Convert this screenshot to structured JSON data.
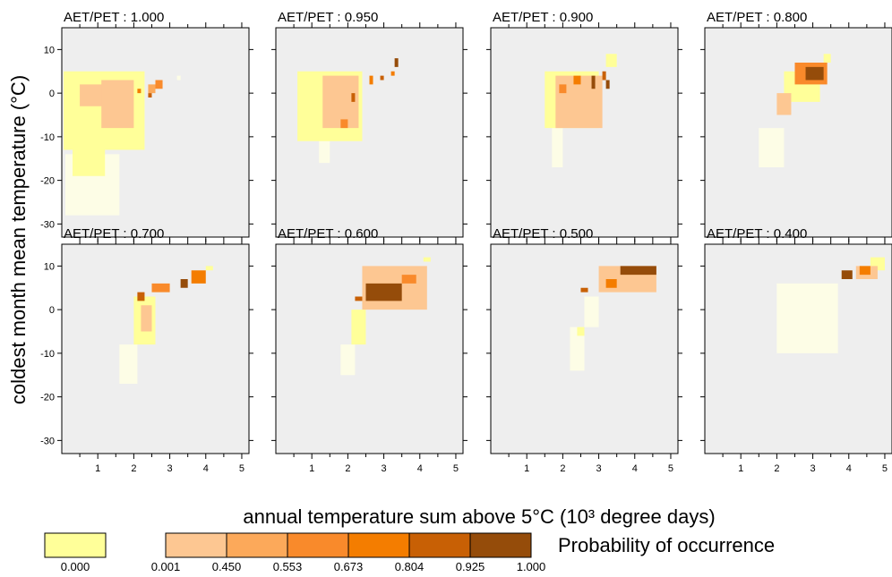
{
  "chart_data": {
    "type": "heatmap",
    "xlabel": "annual temperature sum above 5°C (10³ degree days)",
    "ylabel": "coldest month mean temperature (°C)",
    "xlim": [
      0,
      5.2
    ],
    "ylim": [
      -33,
      15
    ],
    "x_ticks": [
      1,
      2,
      3,
      4,
      5
    ],
    "y_ticks": [
      -30,
      -20,
      -10,
      0,
      10
    ],
    "legend": {
      "title": "Probability of occurrence",
      "zero_label": "0.000",
      "zero_color": "#ffff99",
      "bin_labels": [
        "0.001",
        "0.450",
        "0.553",
        "0.673",
        "0.804",
        "0.925",
        "1.000"
      ],
      "bin_colors": [
        "#fdc792",
        "#fca95a",
        "#f98a2b",
        "#f47d00",
        "#c86005",
        "#954c0a"
      ]
    },
    "absent_color": "#fdfde6",
    "background_color": "#eeeeee",
    "panels": [
      {
        "title": "AET/PET : 1.000",
        "aet_pet": 1.0,
        "regions": [
          {
            "class": "absent",
            "x": [
              0.1,
              1.6
            ],
            "y": [
              -28,
              -14
            ]
          },
          {
            "class": "zero",
            "x": [
              0.05,
              2.3
            ],
            "y": [
              -13,
              5
            ]
          },
          {
            "class": "zero",
            "x": [
              0.3,
              1.2
            ],
            "y": [
              -19,
              -13
            ]
          },
          {
            "class": "b1",
            "x": [
              0.5,
              1.7
            ],
            "y": [
              -3,
              2
            ]
          },
          {
            "class": "b1",
            "x": [
              1.1,
              2.0
            ],
            "y": [
              -8,
              3
            ]
          },
          {
            "class": "b2",
            "x": [
              2.4,
              2.6
            ],
            "y": [
              0,
              2
            ]
          },
          {
            "class": "b3",
            "x": [
              2.6,
              2.8
            ],
            "y": [
              1,
              3
            ]
          },
          {
            "class": "b4",
            "x": [
              2.1,
              2.2
            ],
            "y": [
              0,
              1
            ]
          },
          {
            "class": "b5",
            "x": [
              2.4,
              2.5
            ],
            "y": [
              -1,
              0
            ]
          },
          {
            "class": "absent",
            "x": [
              3.2,
              3.3
            ],
            "y": [
              3,
              4
            ]
          }
        ]
      },
      {
        "title": "AET/PET : 0.950",
        "aet_pet": 0.95,
        "regions": [
          {
            "class": "absent",
            "x": [
              1.2,
              1.5
            ],
            "y": [
              -16,
              -8
            ]
          },
          {
            "class": "zero",
            "x": [
              0.6,
              2.4
            ],
            "y": [
              -11,
              5
            ]
          },
          {
            "class": "b1",
            "x": [
              1.3,
              2.3
            ],
            "y": [
              -8,
              4
            ]
          },
          {
            "class": "b3",
            "x": [
              1.8,
              2.0
            ],
            "y": [
              -8,
              -6
            ]
          },
          {
            "class": "b4",
            "x": [
              2.6,
              2.7
            ],
            "y": [
              2,
              4
            ]
          },
          {
            "class": "b5",
            "x": [
              2.1,
              2.2
            ],
            "y": [
              -2,
              0
            ]
          },
          {
            "class": "b6",
            "x": [
              3.3,
              3.4
            ],
            "y": [
              6,
              8
            ]
          },
          {
            "class": "b5",
            "x": [
              2.9,
              3.0
            ],
            "y": [
              3,
              4
            ]
          },
          {
            "class": "b4",
            "x": [
              3.2,
              3.3
            ],
            "y": [
              4,
              5
            ]
          }
        ]
      },
      {
        "title": "AET/PET : 0.900",
        "aet_pet": 0.9,
        "regions": [
          {
            "class": "absent",
            "x": [
              1.7,
              2.0
            ],
            "y": [
              -17,
              -8
            ]
          },
          {
            "class": "zero",
            "x": [
              1.5,
              3.0
            ],
            "y": [
              -8,
              5
            ]
          },
          {
            "class": "zero",
            "x": [
              3.2,
              3.5
            ],
            "y": [
              6,
              9
            ]
          },
          {
            "class": "b1",
            "x": [
              1.8,
              3.1
            ],
            "y": [
              -8,
              4
            ]
          },
          {
            "class": "b3",
            "x": [
              1.9,
              2.1
            ],
            "y": [
              0,
              2
            ]
          },
          {
            "class": "b6",
            "x": [
              2.8,
              2.9
            ],
            "y": [
              1,
              4
            ]
          },
          {
            "class": "b5",
            "x": [
              3.1,
              3.2
            ],
            "y": [
              3,
              5
            ]
          },
          {
            "class": "b6",
            "x": [
              3.2,
              3.3
            ],
            "y": [
              1,
              3
            ]
          },
          {
            "class": "b4",
            "x": [
              2.3,
              2.5
            ],
            "y": [
              2,
              4
            ]
          }
        ]
      },
      {
        "title": "AET/PET : 0.800",
        "aet_pet": 0.8,
        "regions": [
          {
            "class": "absent",
            "x": [
              1.5,
              2.2
            ],
            "y": [
              -17,
              -8
            ]
          },
          {
            "class": "zero",
            "x": [
              2.2,
              3.2
            ],
            "y": [
              -2,
              5
            ]
          },
          {
            "class": "b1",
            "x": [
              2.0,
              2.4
            ],
            "y": [
              -5,
              0
            ]
          },
          {
            "class": "b3",
            "x": [
              2.5,
              3.4
            ],
            "y": [
              2,
              7
            ]
          },
          {
            "class": "b6",
            "x": [
              2.8,
              3.3
            ],
            "y": [
              3,
              6
            ]
          },
          {
            "class": "zero",
            "x": [
              3.3,
              3.5
            ],
            "y": [
              7,
              9
            ]
          }
        ]
      },
      {
        "title": "AET/PET : 0.700",
        "aet_pet": 0.7,
        "regions": [
          {
            "class": "absent",
            "x": [
              1.6,
              2.1
            ],
            "y": [
              -17,
              -8
            ]
          },
          {
            "class": "zero",
            "x": [
              2.0,
              2.6
            ],
            "y": [
              -8,
              3
            ]
          },
          {
            "class": "b1",
            "x": [
              2.2,
              2.5
            ],
            "y": [
              -5,
              1
            ]
          },
          {
            "class": "b5",
            "x": [
              2.1,
              2.3
            ],
            "y": [
              2,
              4
            ]
          },
          {
            "class": "b3",
            "x": [
              2.5,
              3.0
            ],
            "y": [
              4,
              6
            ]
          },
          {
            "class": "b6",
            "x": [
              3.3,
              3.5
            ],
            "y": [
              5,
              7
            ]
          },
          {
            "class": "b4",
            "x": [
              3.6,
              4.0
            ],
            "y": [
              6,
              9
            ]
          },
          {
            "class": "zero",
            "x": [
              4.0,
              4.2
            ],
            "y": [
              9,
              10
            ]
          }
        ]
      },
      {
        "title": "AET/PET : 0.600",
        "aet_pet": 0.6,
        "regions": [
          {
            "class": "absent",
            "x": [
              1.8,
              2.2
            ],
            "y": [
              -15,
              -8
            ]
          },
          {
            "class": "zero",
            "x": [
              2.1,
              2.5
            ],
            "y": [
              -8,
              0
            ]
          },
          {
            "class": "b1",
            "x": [
              2.4,
              4.2
            ],
            "y": [
              0,
              10
            ]
          },
          {
            "class": "b6",
            "x": [
              2.5,
              3.5
            ],
            "y": [
              2,
              6
            ]
          },
          {
            "class": "b3",
            "x": [
              3.5,
              3.9
            ],
            "y": [
              6,
              8
            ]
          },
          {
            "class": "b5",
            "x": [
              2.2,
              2.4
            ],
            "y": [
              2,
              3
            ]
          },
          {
            "class": "zero",
            "x": [
              4.1,
              4.3
            ],
            "y": [
              11,
              12
            ]
          }
        ]
      },
      {
        "title": "AET/PET : 0.500",
        "aet_pet": 0.5,
        "regions": [
          {
            "class": "absent",
            "x": [
              2.2,
              2.6
            ],
            "y": [
              -14,
              -4
            ]
          },
          {
            "class": "zero",
            "x": [
              2.4,
              2.6
            ],
            "y": [
              -6,
              -4
            ]
          },
          {
            "class": "absent",
            "x": [
              2.6,
              3.0
            ],
            "y": [
              -4,
              3
            ]
          },
          {
            "class": "b1",
            "x": [
              3.0,
              4.6
            ],
            "y": [
              4,
              10
            ]
          },
          {
            "class": "b6",
            "x": [
              3.6,
              4.6
            ],
            "y": [
              8,
              10
            ]
          },
          {
            "class": "b5",
            "x": [
              2.5,
              2.7
            ],
            "y": [
              4,
              5
            ]
          },
          {
            "class": "b4",
            "x": [
              3.2,
              3.5
            ],
            "y": [
              5,
              7
            ]
          }
        ]
      },
      {
        "title": "AET/PET : 0.400",
        "aet_pet": 0.4,
        "regions": [
          {
            "class": "absent",
            "x": [
              2.0,
              3.7
            ],
            "y": [
              -10,
              6
            ]
          },
          {
            "class": "zero",
            "x": [
              4.6,
              5.0
            ],
            "y": [
              9,
              12
            ]
          },
          {
            "class": "b1",
            "x": [
              4.2,
              4.8
            ],
            "y": [
              7,
              10
            ]
          },
          {
            "class": "b6",
            "x": [
              3.8,
              4.1
            ],
            "y": [
              7,
              9
            ]
          },
          {
            "class": "b4",
            "x": [
              4.3,
              4.6
            ],
            "y": [
              8,
              10
            ]
          }
        ]
      }
    ]
  }
}
